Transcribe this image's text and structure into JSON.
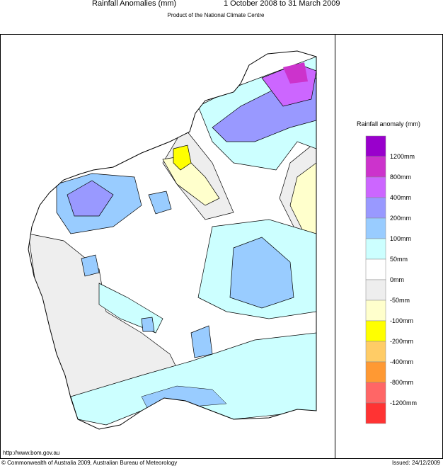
{
  "header": {
    "title": "Rainfall Anomalies (mm)",
    "period": "1 October 2008 to 31 March 2009",
    "subtitle": "Product of the National Climate Centre"
  },
  "legend": {
    "title": "Rainfall anomaly (mm)",
    "labels": [
      "1200mm",
      "800mm",
      "400mm",
      "200mm",
      "100mm",
      "50mm",
      "0mm",
      "-50mm",
      "-100mm",
      "-200mm",
      "-400mm",
      "-800mm",
      "-1200mm"
    ],
    "colors": [
      "#9900cc",
      "#cc33cc",
      "#cc66ff",
      "#9999ff",
      "#99ccff",
      "#ccffff",
      "#ffffff",
      "#eeeeee",
      "#ffffcc",
      "#ffff00",
      "#ffcc66",
      "#ff9933",
      "#ff6666",
      "#ff3333"
    ]
  },
  "footer": {
    "url": "http://www.bom.gov.au",
    "copyright": "© Commonwealth of Australia 2009, Australian Bureau of Meteorology",
    "issued": "Issued: 24/12/2009"
  }
}
